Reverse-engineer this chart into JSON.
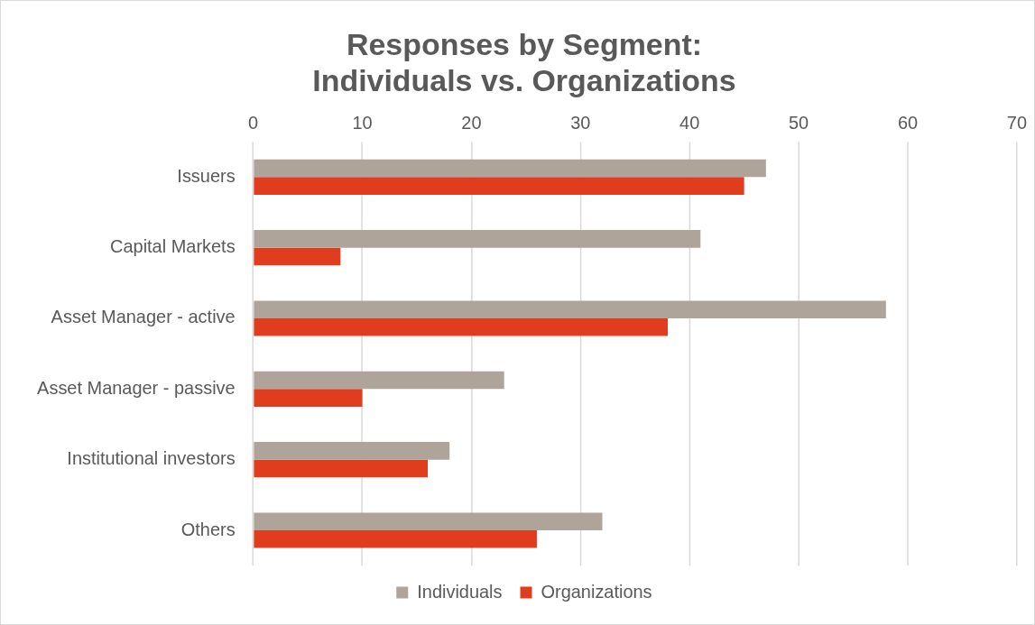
{
  "chart_data": {
    "type": "bar",
    "orientation": "horizontal",
    "title": [
      "Responses by Segment:",
      "Individuals vs. Organizations"
    ],
    "categories": [
      "Issuers",
      "Capital Markets",
      "Asset Manager - active",
      "Asset Manager - passive",
      "Institutional investors",
      "Others"
    ],
    "series": [
      {
        "name": "Individuals",
        "color": "#afa499",
        "values": [
          47,
          41,
          58,
          23,
          18,
          32
        ]
      },
      {
        "name": "Organizations",
        "color": "#e03c1e",
        "values": [
          45,
          8,
          38,
          10,
          16,
          26
        ]
      }
    ],
    "xlim": [
      0,
      70
    ],
    "xticks": [
      0,
      10,
      20,
      30,
      40,
      50,
      60,
      70
    ],
    "grid": "x",
    "legend": "bottom"
  }
}
